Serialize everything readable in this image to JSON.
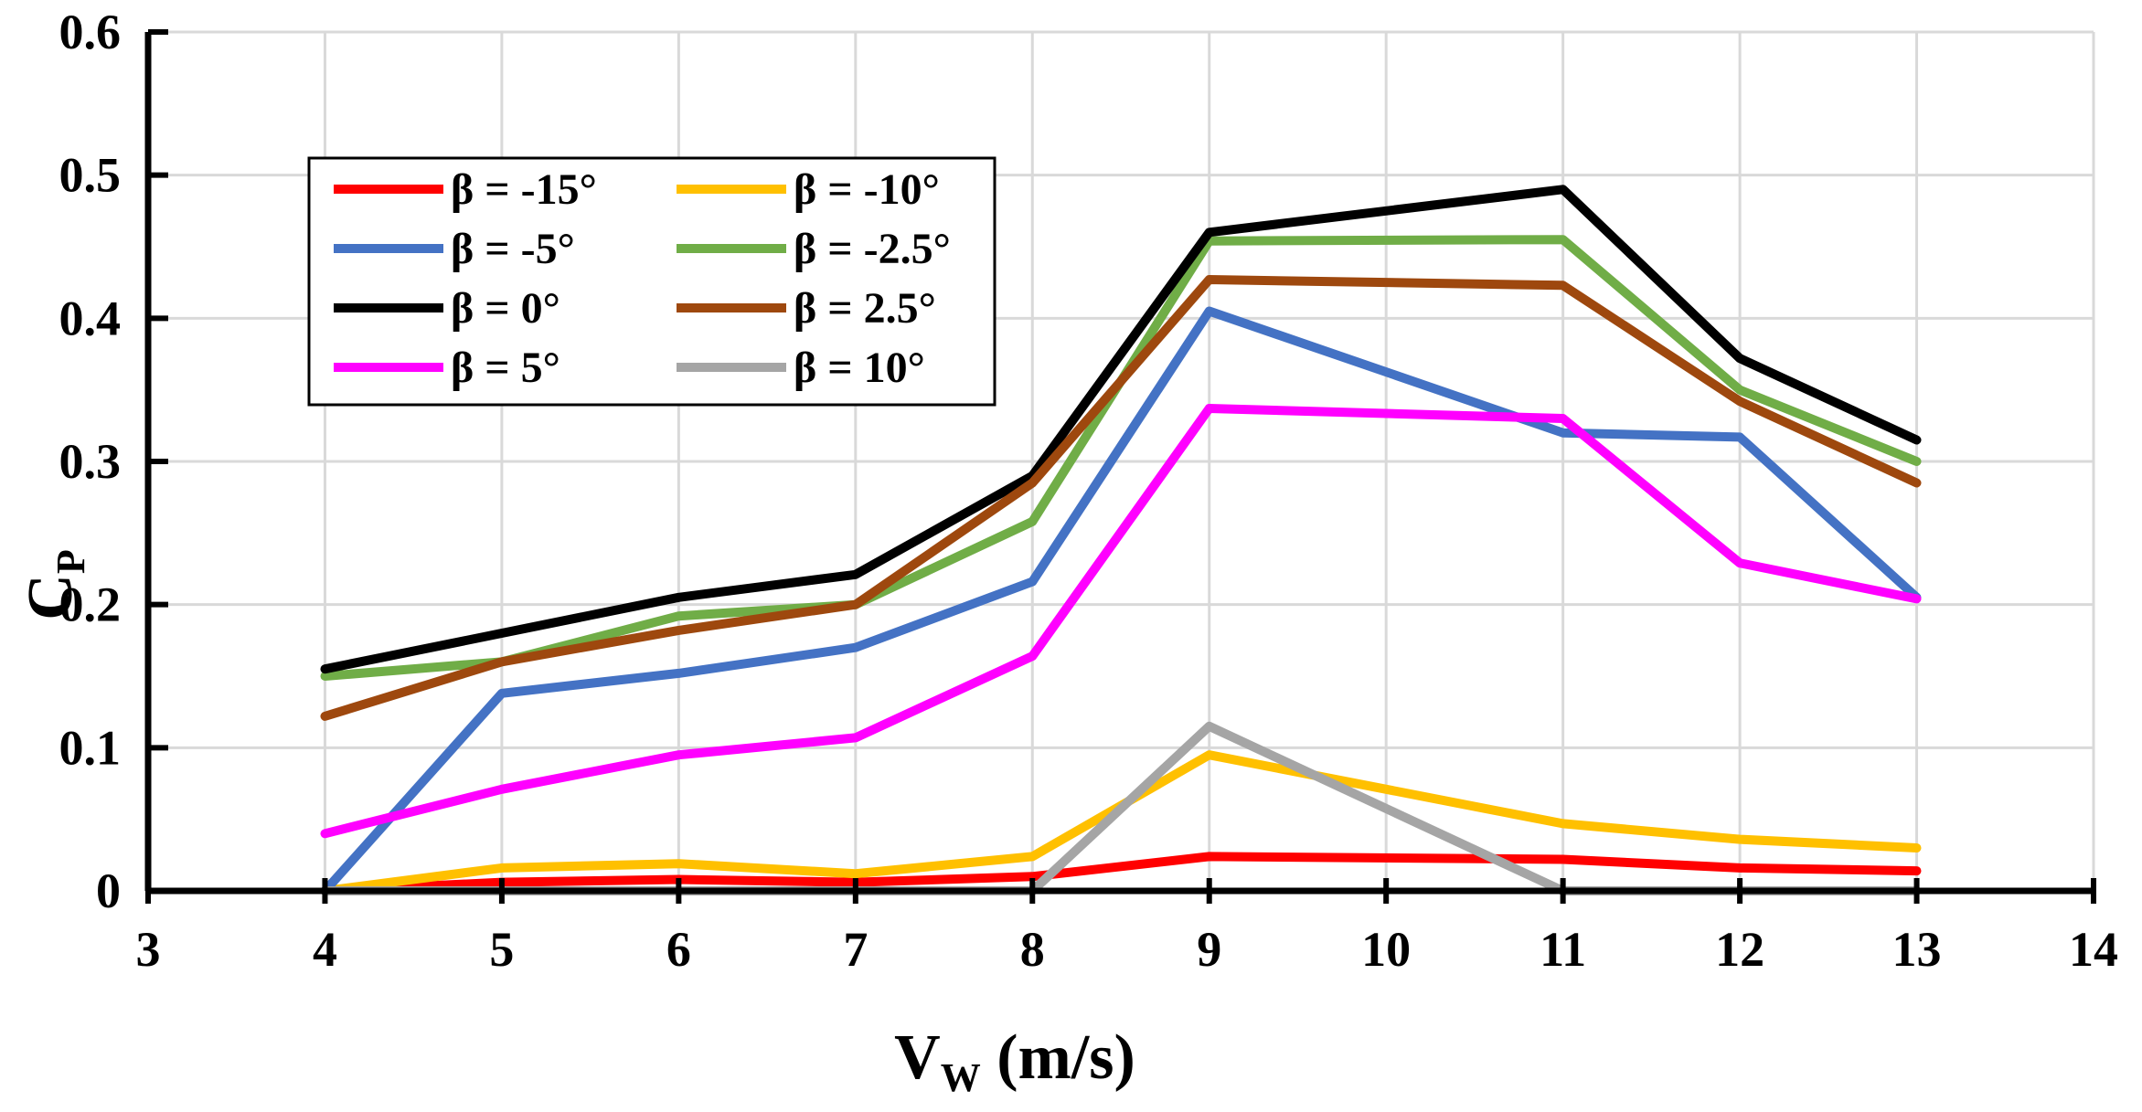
{
  "chart_data": {
    "type": "line",
    "title": "",
    "xlabel": {
      "main": "V",
      "sub": "W",
      "rest": " (m/s)"
    },
    "ylabel": {
      "main": "C",
      "sub": "P"
    },
    "xlim": [
      3,
      14
    ],
    "ylim": [
      0,
      0.6
    ],
    "xticks": [
      "3",
      "4",
      "5",
      "6",
      "7",
      "8",
      "9",
      "10",
      "11",
      "12",
      "13",
      "14"
    ],
    "yticks": [
      "0",
      "0.1",
      "0.2",
      "0.3",
      "0.4",
      "0.5",
      "0.6"
    ],
    "grid": true,
    "legend_position": "top-left",
    "x": [
      4,
      5,
      6,
      7,
      8,
      9,
      11,
      12,
      13
    ],
    "series": [
      {
        "name": "β = -15°",
        "color": "#ff0000",
        "values": [
          0.0,
          0.006,
          0.008,
          0.006,
          0.01,
          0.024,
          0.022,
          0.016,
          0.014
        ]
      },
      {
        "name": "β = -10°",
        "color": "#ffc000",
        "values": [
          0.0,
          0.016,
          0.019,
          0.012,
          0.024,
          0.095,
          0.047,
          0.036,
          0.03
        ]
      },
      {
        "name": "β = -5°",
        "color": "#4472c4",
        "values": [
          0.0,
          0.138,
          0.152,
          0.17,
          0.216,
          0.405,
          0.32,
          0.317,
          0.205
        ]
      },
      {
        "name": "β = -2.5°",
        "color": "#70ad47",
        "values": [
          0.15,
          0.16,
          0.192,
          0.2,
          0.258,
          0.454,
          0.455,
          0.35,
          0.3
        ]
      },
      {
        "name": "β = 0°",
        "color": "#000000",
        "values": [
          0.155,
          0.18,
          0.205,
          0.221,
          0.29,
          0.46,
          0.49,
          0.372,
          0.315
        ]
      },
      {
        "name": "β = 2.5°",
        "color": "#9e480e",
        "values": [
          0.122,
          0.16,
          0.182,
          0.2,
          0.285,
          0.427,
          0.423,
          0.342,
          0.285
        ]
      },
      {
        "name": "β = 5°",
        "color": "#ff00ff",
        "values": [
          0.04,
          0.071,
          0.095,
          0.107,
          0.164,
          0.337,
          0.33,
          0.229,
          0.204
        ]
      },
      {
        "name": "β = 10°",
        "color": "#a5a5a5",
        "values": [
          0.0,
          0.0,
          0.0,
          0.0,
          0.0,
          0.115,
          0.0,
          0.0,
          0.0
        ]
      }
    ]
  }
}
